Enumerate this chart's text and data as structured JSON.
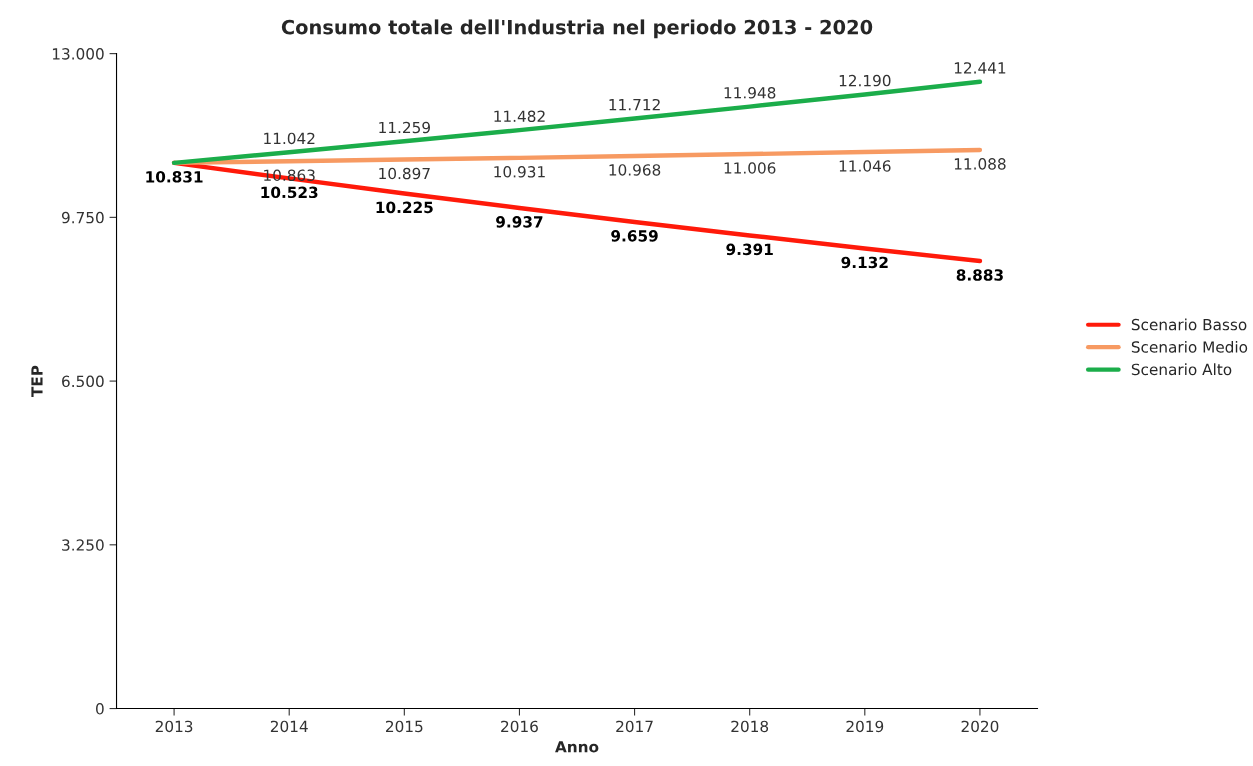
{
  "chart_data": {
    "type": "line",
    "title": "Consumo totale dell'Industria nel periodo 2013 - 2020",
    "xlabel": "Anno",
    "ylabel": "TEP",
    "categories": [
      "2013",
      "2014",
      "2015",
      "2016",
      "2017",
      "2018",
      "2019",
      "2020"
    ],
    "series": [
      {
        "name": "Scenario Basso",
        "color": "#ff1a0a",
        "values": [
          10831,
          10523,
          10225,
          9937,
          9659,
          9391,
          9132,
          8883
        ],
        "value_labels": [
          "10.831",
          "10.523",
          "10.225",
          "9.937",
          "9.659",
          "9.391",
          "9.132",
          "8.883"
        ]
      },
      {
        "name": "Scenario Medio",
        "color": "#f79a62",
        "values": [
          10831,
          10863,
          10897,
          10931,
          10968,
          11006,
          11046,
          11088
        ],
        "value_labels": [
          null,
          "10.863",
          "10.897",
          "10.931",
          "10.968",
          "11.006",
          "11.046",
          "11.088"
        ]
      },
      {
        "name": "Scenario Alto",
        "color": "#1bad4a",
        "values": [
          10831,
          11042,
          11259,
          11482,
          11712,
          11948,
          12190,
          12441
        ],
        "value_labels": [
          null,
          "11.042",
          "11.259",
          "11.482",
          "11.712",
          "11.948",
          "12.190",
          "12.441"
        ]
      }
    ],
    "ylim": [
      0,
      13000
    ],
    "yticks": [
      0,
      {
        "value": 3250,
        "label": "3.250"
      },
      {
        "value": 6500,
        "label": "6.500"
      },
      {
        "value": 9750,
        "label": "9.750"
      },
      {
        "value": 13000,
        "label": "13.000"
      }
    ],
    "grid": false,
    "legend": "right",
    "marker": "none",
    "line_style": "solid"
  }
}
